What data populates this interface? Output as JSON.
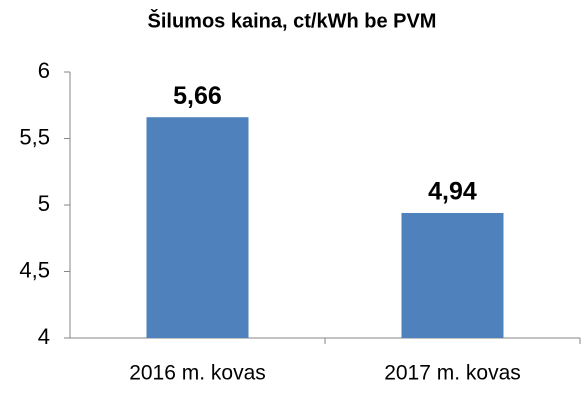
{
  "chart_data": {
    "type": "bar",
    "title": "Šilumos kaina, ct/kWh be PVM",
    "categories": [
      "2016 m. kovas",
      "2017 m. kovas"
    ],
    "values": [
      5.66,
      4.94
    ],
    "value_labels": [
      "5,66",
      "4,94"
    ],
    "color": "#4f81bd",
    "ylim": [
      4,
      6
    ],
    "yticks": [
      4,
      {
        "value": 4.5,
        "label": "4,5"
      },
      5,
      {
        "value": 5.5,
        "label": "5,5"
      },
      6
    ],
    "grid": false
  }
}
